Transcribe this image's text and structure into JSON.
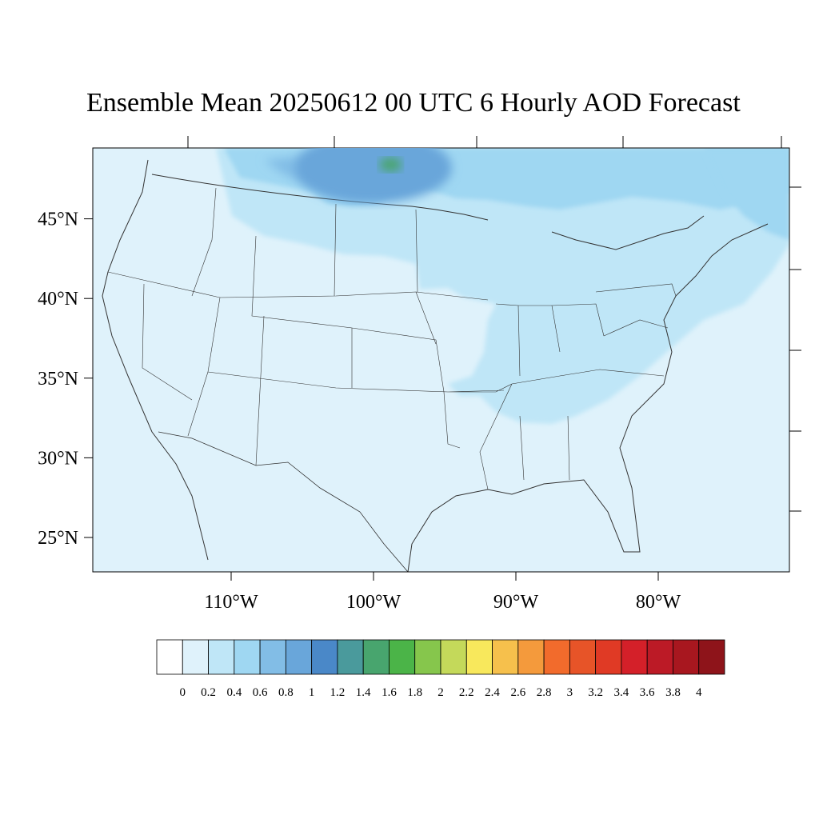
{
  "title": "Ensemble Mean 20250612 00 UTC 6 Hourly AOD Forecast",
  "map": {
    "lon_range": [
      -119,
      -70
    ],
    "lat_range": [
      22.5,
      49.5
    ],
    "lat_ticks": [
      {
        "value": 45,
        "label": "45°N"
      },
      {
        "value": 40,
        "label": "40°N"
      },
      {
        "value": 35,
        "label": "35°N"
      },
      {
        "value": 30,
        "label": "30°N"
      },
      {
        "value": 25,
        "label": "25°N"
      }
    ],
    "lon_ticks": [
      {
        "value": -110,
        "label": "110°W"
      },
      {
        "value": -100,
        "label": "100°W"
      },
      {
        "value": -90,
        "label": "90°W"
      },
      {
        "value": -80,
        "label": "80°W"
      }
    ],
    "background_color": "#dff2fb"
  },
  "colorbar": {
    "labels": [
      "0",
      "0.2",
      "0.4",
      "0.6",
      "0.8",
      "1",
      "1.2",
      "1.4",
      "1.6",
      "1.8",
      "2",
      "2.2",
      "2.4",
      "2.6",
      "2.8",
      "3",
      "3.2",
      "3.4",
      "3.6",
      "3.8",
      "4"
    ],
    "colors": [
      "#ffffff",
      "#dff2fb",
      "#bfe6f7",
      "#9fd7f2",
      "#82bde6",
      "#69a6da",
      "#4a88c8",
      "#4a9a9c",
      "#48a56e",
      "#4bb448",
      "#86c64c",
      "#c4d95a",
      "#f8e85c",
      "#f6c04c",
      "#f49a3c",
      "#f26b2c",
      "#e75428",
      "#e03a25",
      "#d42029",
      "#bc1a26",
      "#a8171f",
      "#8e141a"
    ]
  },
  "field": {
    "blobs": [
      {
        "name": "dakota-plume-high",
        "color": "#4a88c8",
        "lon": -98.8,
        "lat": 47.8,
        "rx_deg": 2.2,
        "ry_deg": 1.2
      },
      {
        "name": "dakota-plume-mid",
        "color": "#69a6da",
        "lon": -100.0,
        "lat": 47.6,
        "rx_deg": 5.5,
        "ry_deg": 2.2
      },
      {
        "name": "dakota-core",
        "color": "#48a56e",
        "lon": -98.8,
        "lat": 47.8,
        "rx_deg": 0.8,
        "ry_deg": 0.45
      }
    ]
  }
}
